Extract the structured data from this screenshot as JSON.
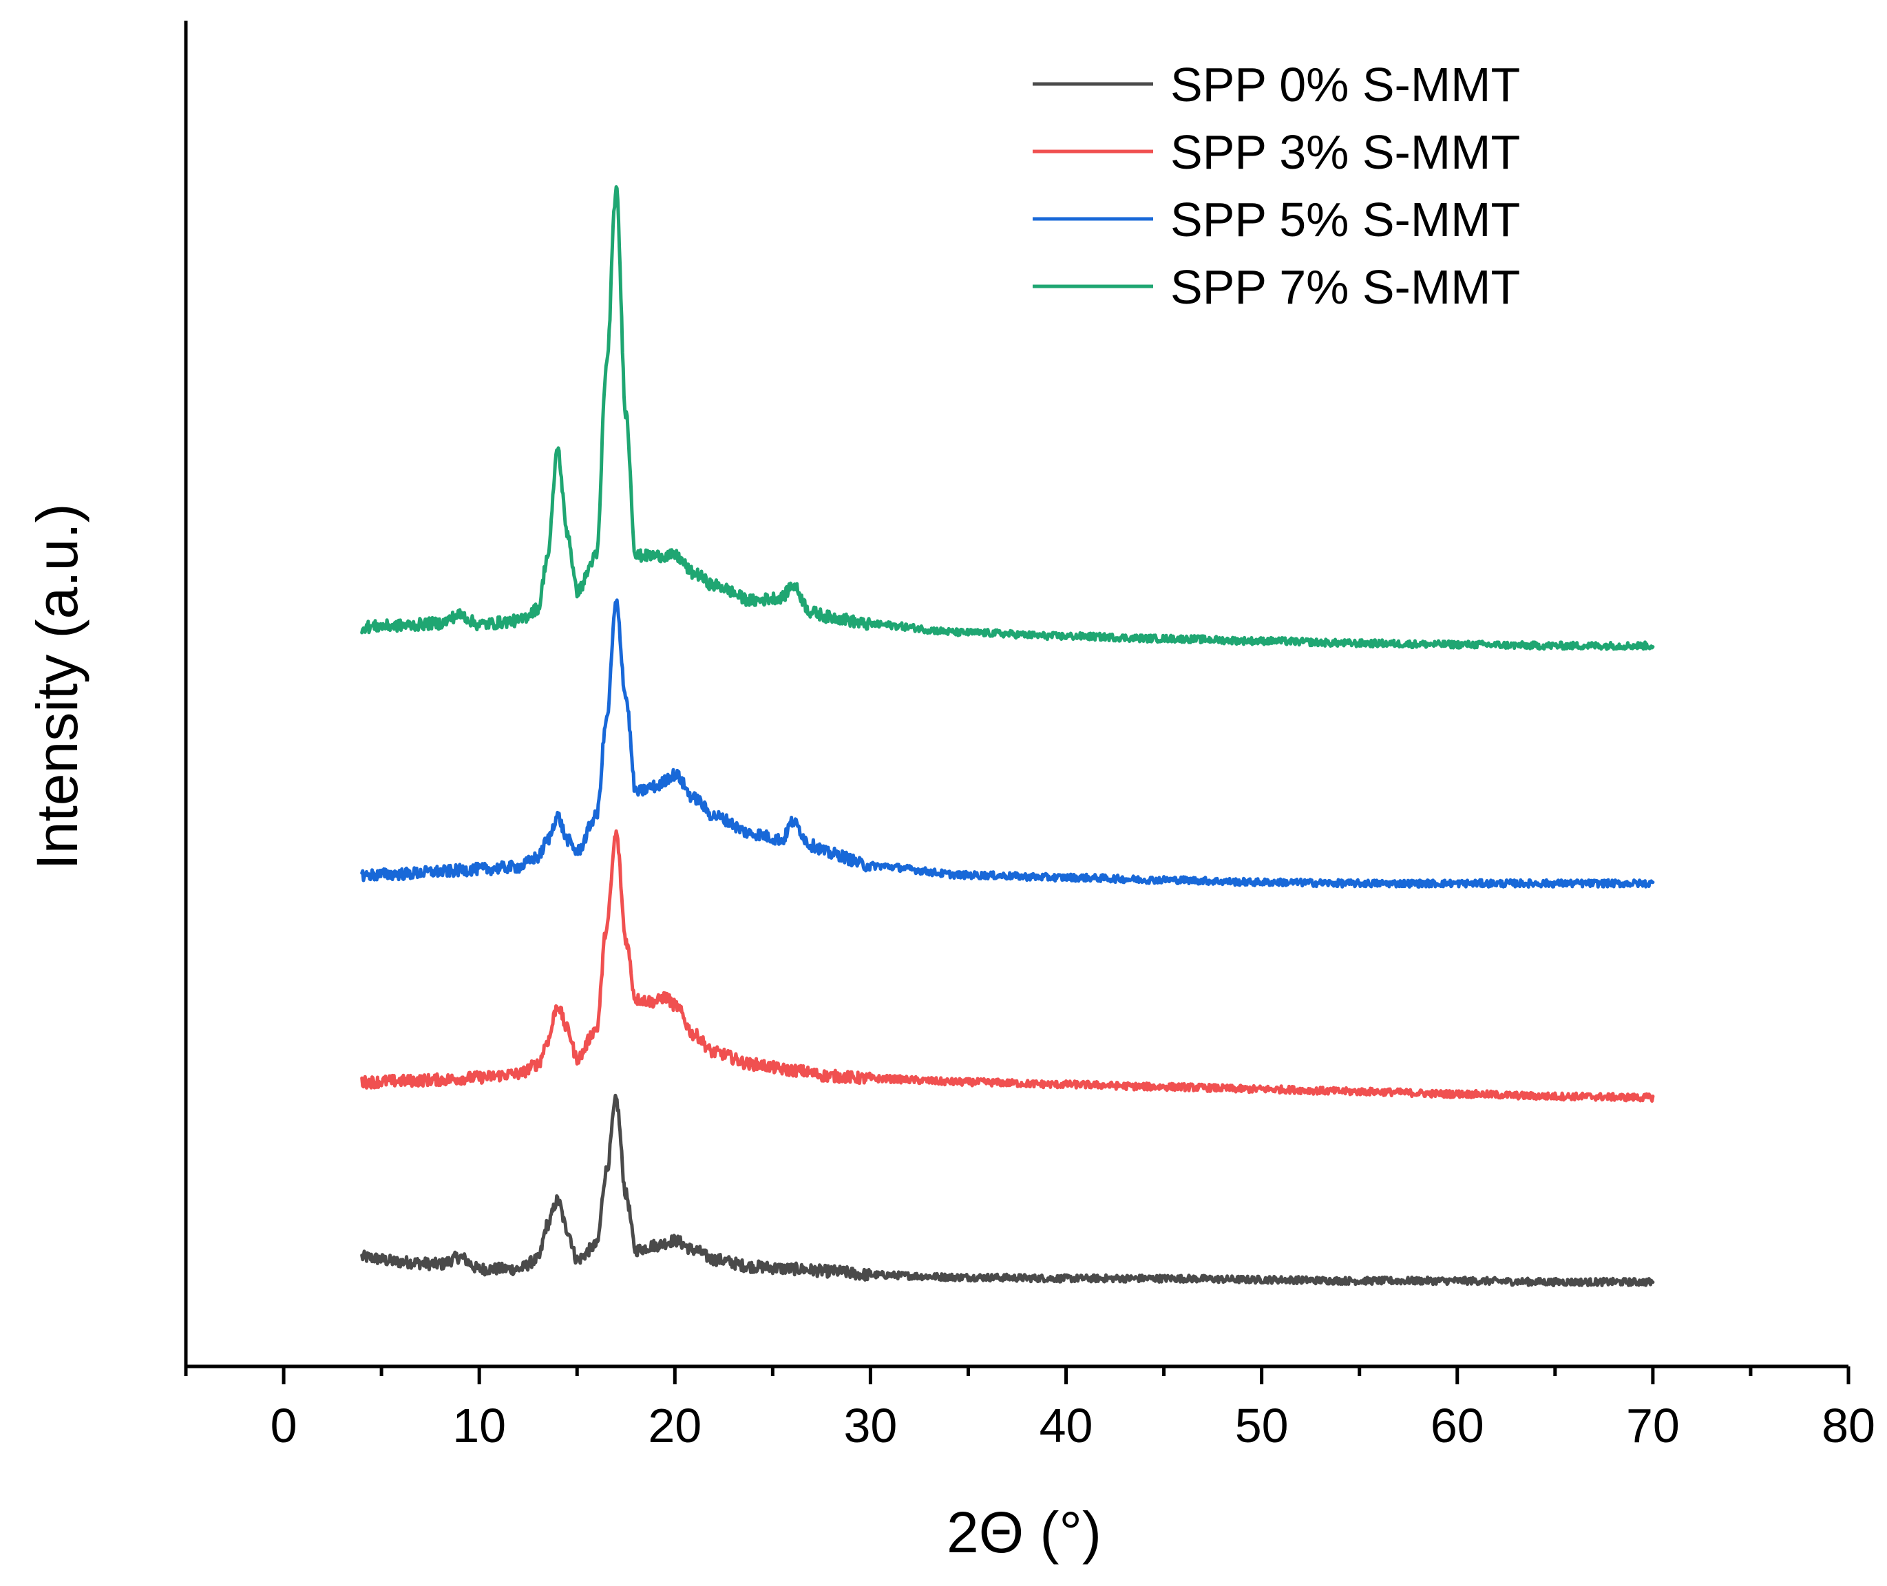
{
  "chart_data": {
    "type": "line",
    "title": "",
    "xlabel": "2Θ (°)",
    "ylabel": "Intensity (a.u.)",
    "xlim": [
      -5,
      80
    ],
    "xticks": [
      0,
      10,
      20,
      30,
      40,
      50,
      60,
      70,
      80
    ],
    "x_minor_step": 5,
    "ylim": [
      -0.5,
      10.5
    ],
    "y_ticks_shown": false,
    "legend_position": "top-right",
    "series": [
      {
        "name": "SPP 0% S-MMT",
        "color": "#4a4a4a",
        "baseline_offset": 0,
        "x": [
          4,
          6,
          8,
          9,
          10,
          12,
          13,
          13.5,
          14,
          14.5,
          15,
          16,
          16.5,
          17,
          17.5,
          18,
          19,
          20,
          21,
          22,
          24,
          26,
          28,
          30,
          35,
          40,
          45,
          50,
          55,
          60,
          65,
          70
        ],
        "y": [
          0.22,
          0.18,
          0.16,
          0.22,
          0.12,
          0.12,
          0.2,
          0.5,
          0.7,
          0.45,
          0.2,
          0.32,
          0.95,
          1.55,
          0.75,
          0.28,
          0.32,
          0.36,
          0.28,
          0.2,
          0.14,
          0.12,
          0.1,
          0.07,
          0.05,
          0.04,
          0.04,
          0.03,
          0.02,
          0.02,
          0.01,
          0.01
        ]
      },
      {
        "name": "SPP 3% S-MMT",
        "color": "#f05050",
        "baseline_offset": 1.7,
        "x": [
          4,
          6,
          8,
          10,
          12,
          13,
          13.5,
          14,
          14.5,
          15,
          16,
          16.5,
          17,
          17.5,
          18,
          19,
          19.5,
          20,
          21,
          22,
          24,
          26,
          28,
          30,
          35,
          40,
          45,
          50,
          55,
          60,
          65,
          70
        ],
        "y": [
          0.0,
          0.01,
          0.02,
          0.04,
          0.07,
          0.15,
          0.35,
          0.65,
          0.45,
          0.2,
          0.45,
          1.3,
          2.1,
          1.2,
          0.7,
          0.68,
          0.72,
          0.65,
          0.4,
          0.25,
          0.15,
          0.1,
          0.05,
          0.03,
          0.0,
          -0.02,
          -0.04,
          -0.06,
          -0.08,
          -0.1,
          -0.12,
          -0.13
        ]
      },
      {
        "name": "SPP 5% S-MMT",
        "color": "#1868d8",
        "baseline_offset": 3.45,
        "x": [
          4,
          6,
          8,
          10,
          12,
          13,
          13.5,
          14,
          14.5,
          15,
          16,
          16.5,
          17,
          17.5,
          18,
          19,
          20,
          21,
          22,
          24,
          25.5,
          26,
          27,
          28,
          30,
          35,
          40,
          45,
          50,
          55,
          60,
          65,
          70
        ],
        "y": [
          0.0,
          0.01,
          0.03,
          0.05,
          0.07,
          0.15,
          0.3,
          0.5,
          0.3,
          0.2,
          0.5,
          1.3,
          2.3,
          1.5,
          0.7,
          0.75,
          0.85,
          0.65,
          0.5,
          0.35,
          0.3,
          0.45,
          0.25,
          0.18,
          0.08,
          0.0,
          -0.02,
          -0.04,
          -0.06,
          -0.07,
          -0.07,
          -0.07,
          -0.07
        ]
      },
      {
        "name": "SPP 7% S-MMT",
        "color": "#1fa672",
        "baseline_offset": 5.55,
        "x": [
          4,
          6,
          8,
          9,
          10,
          12,
          13,
          13.5,
          14,
          14.5,
          15,
          16,
          16.5,
          17,
          17.5,
          18,
          19,
          20,
          21,
          22,
          24,
          25.5,
          26,
          27,
          28,
          30,
          35,
          40,
          45,
          50,
          55,
          60,
          65,
          70
        ],
        "y": [
          0.0,
          0.01,
          0.03,
          0.1,
          0.02,
          0.05,
          0.15,
          0.6,
          1.5,
          0.8,
          0.3,
          0.6,
          2.2,
          3.7,
          1.8,
          0.6,
          0.6,
          0.6,
          0.45,
          0.35,
          0.22,
          0.25,
          0.35,
          0.12,
          0.08,
          0.02,
          -0.05,
          -0.08,
          -0.1,
          -0.12,
          -0.14,
          -0.15,
          -0.16,
          -0.16
        ]
      }
    ]
  }
}
